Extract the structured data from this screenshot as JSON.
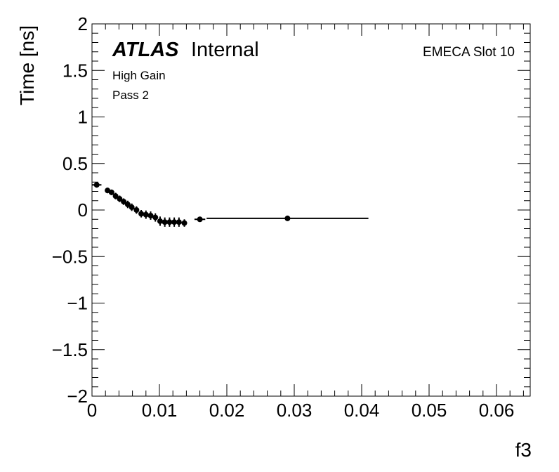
{
  "chart_data": {
    "type": "scatter",
    "xlabel": "f3",
    "ylabel": "Time [ns]",
    "xlim": [
      0,
      0.065
    ],
    "ylim": [
      -2,
      2
    ],
    "x_ticks": [
      0,
      0.01,
      0.02,
      0.03,
      0.04,
      0.05,
      0.06
    ],
    "x_tick_labels": [
      "0",
      "0.01",
      "0.02",
      "0.03",
      "0.04",
      "0.05",
      "0.06"
    ],
    "y_ticks": [
      -2,
      -1.5,
      -1,
      -0.5,
      0,
      0.5,
      1,
      1.5,
      2
    ],
    "y_tick_labels": [
      "−2",
      "−1.5",
      "−1",
      "−0.5",
      "0",
      "0.5",
      "1",
      "1.5",
      "2"
    ],
    "grid": false,
    "annotations": {
      "atlas_bold": "ATLAS",
      "atlas_rest": "Internal",
      "line1": "High Gain",
      "line2": "Pass 2",
      "slot": "EMECA Slot 10"
    },
    "points": [
      {
        "x": 0.0007,
        "y": 0.27,
        "xerr": 0.0007,
        "yerr": 0.02
      },
      {
        "x": 0.0023,
        "y": 0.21,
        "xerr": 0.0003,
        "yerr": 0.03
      },
      {
        "x": 0.0029,
        "y": 0.19,
        "xerr": 0.0003,
        "yerr": 0.03
      },
      {
        "x": 0.0035,
        "y": 0.15,
        "xerr": 0.0003,
        "yerr": 0.035
      },
      {
        "x": 0.0041,
        "y": 0.12,
        "xerr": 0.0003,
        "yerr": 0.035
      },
      {
        "x": 0.0047,
        "y": 0.09,
        "xerr": 0.0003,
        "yerr": 0.035
      },
      {
        "x": 0.0053,
        "y": 0.06,
        "xerr": 0.0003,
        "yerr": 0.04
      },
      {
        "x": 0.0059,
        "y": 0.03,
        "xerr": 0.0003,
        "yerr": 0.04
      },
      {
        "x": 0.0066,
        "y": 0.0,
        "xerr": 0.0003,
        "yerr": 0.04
      },
      {
        "x": 0.0073,
        "y": -0.04,
        "xerr": 0.0003,
        "yerr": 0.04
      },
      {
        "x": 0.008,
        "y": -0.05,
        "xerr": 0.0003,
        "yerr": 0.045
      },
      {
        "x": 0.0087,
        "y": -0.06,
        "xerr": 0.0003,
        "yerr": 0.045
      },
      {
        "x": 0.0094,
        "y": -0.08,
        "xerr": 0.0003,
        "yerr": 0.045
      },
      {
        "x": 0.0101,
        "y": -0.12,
        "xerr": 0.0003,
        "yerr": 0.05
      },
      {
        "x": 0.0108,
        "y": -0.13,
        "xerr": 0.0003,
        "yerr": 0.05
      },
      {
        "x": 0.0115,
        "y": -0.13,
        "xerr": 0.0003,
        "yerr": 0.05
      },
      {
        "x": 0.0122,
        "y": -0.13,
        "xerr": 0.0003,
        "yerr": 0.05
      },
      {
        "x": 0.0129,
        "y": -0.13,
        "xerr": 0.0003,
        "yerr": 0.05
      },
      {
        "x": 0.0137,
        "y": -0.14,
        "xerr": 0.0004,
        "yerr": 0.04
      },
      {
        "x": 0.016,
        "y": -0.1,
        "xerr": 0.0008,
        "yerr": 0.025
      },
      {
        "x": 0.029,
        "y": -0.09,
        "xerr": 0.012,
        "yerr": 0.015
      }
    ]
  }
}
